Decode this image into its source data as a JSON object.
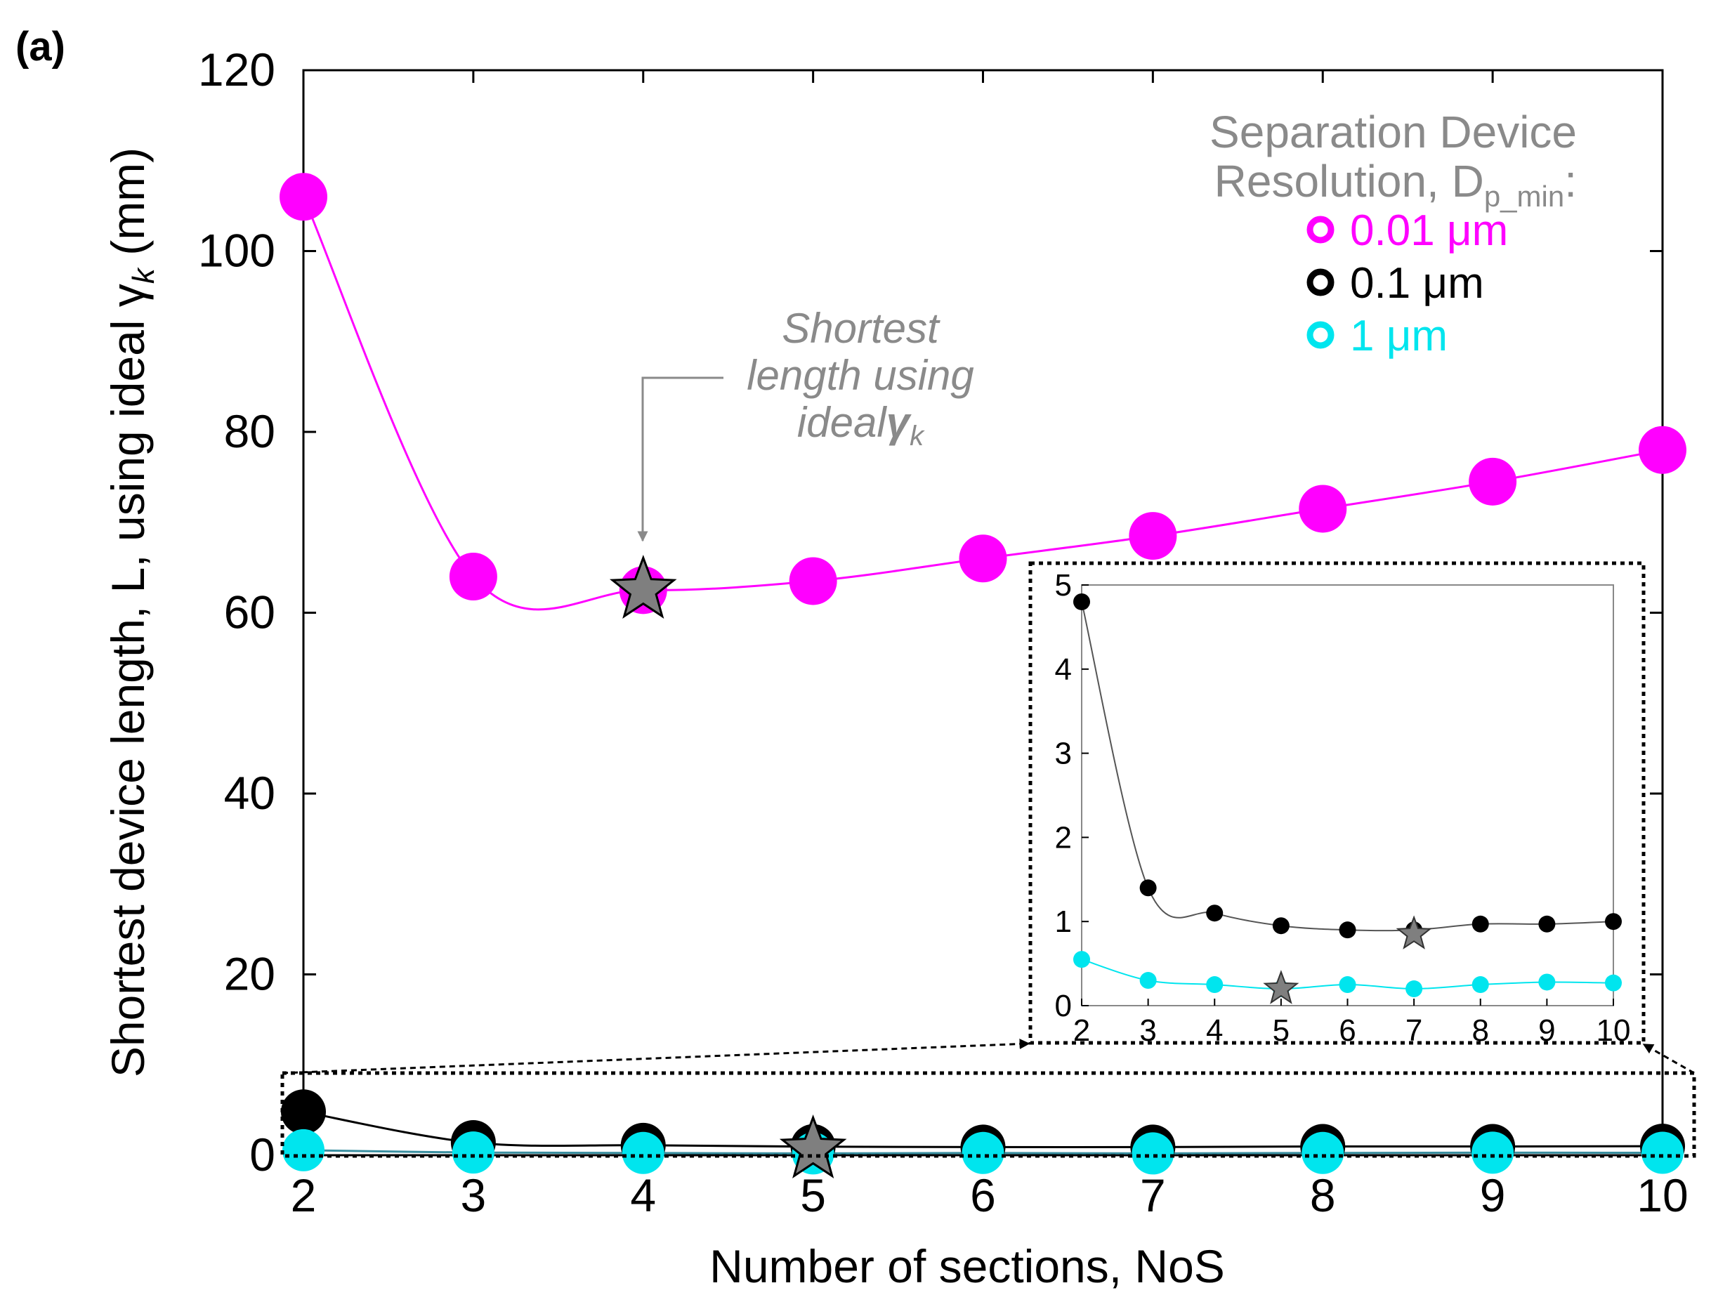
{
  "chart_data": [
    {
      "type": "line",
      "panel_label": "(a)",
      "xlabel": "Number of sections, NoS",
      "ylabel": "Shortest device length, L, using ideal γ",
      "ylabel_sub": "k",
      "ylabel_unit": " (mm)",
      "x": [
        2,
        3,
        4,
        5,
        6,
        7,
        8,
        9,
        10
      ],
      "xlim": [
        2,
        10
      ],
      "ylim": [
        0,
        120
      ],
      "x_ticks": [
        "2",
        "3",
        "4",
        "5",
        "6",
        "7",
        "8",
        "9",
        "10"
      ],
      "y_ticks": [
        "0",
        "20",
        "40",
        "60",
        "80",
        "100",
        "120"
      ],
      "legend_title_line1": "Separation Device",
      "legend_title_line2": "Resolution, D",
      "legend_title_sub": "p_min",
      "legend_title_colon": ":",
      "legend_position": "top-right",
      "series": [
        {
          "name": "0.01 μm",
          "color": "#ff00ff",
          "values": [
            106,
            64,
            62.5,
            63.5,
            66,
            68.5,
            71.5,
            74.5,
            78
          ],
          "star_x": 4,
          "star_y": 62.5
        },
        {
          "name": "0.1 μm",
          "color": "#000000",
          "values": [
            4.8,
            1.4,
            1.1,
            0.95,
            0.9,
            0.9,
            0.97,
            0.97,
            1.0
          ],
          "star_x": 7,
          "star_y": 0.85
        },
        {
          "name": "1 μm",
          "color": "#00e5ee",
          "values": [
            0.55,
            0.3,
            0.25,
            0.2,
            0.25,
            0.2,
            0.25,
            0.28,
            0.27
          ],
          "star_x": 5,
          "star_y": 0.2
        }
      ],
      "annotation": {
        "line1": "Shortest",
        "line2": "length using",
        "line3": "ideal",
        "line3_symbol": "γ",
        "line3_sub": "k"
      },
      "grid": false
    },
    {
      "type": "line",
      "role": "inset",
      "x": [
        2,
        3,
        4,
        5,
        6,
        7,
        8,
        9,
        10
      ],
      "xlim": [
        2,
        10
      ],
      "ylim": [
        0,
        5
      ],
      "x_ticks": [
        "2",
        "3",
        "4",
        "5",
        "6",
        "7",
        "8",
        "9",
        "10"
      ],
      "y_ticks": [
        "0",
        "1",
        "2",
        "3",
        "4",
        "5"
      ],
      "grid": false
    }
  ]
}
